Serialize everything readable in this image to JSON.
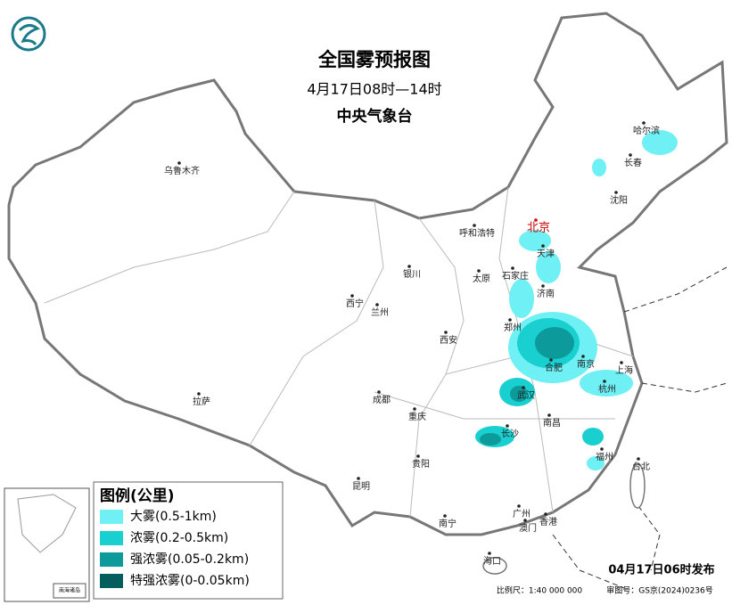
{
  "header": {
    "title": "全国雾预报图",
    "subtitle": "4月17日08时—14时",
    "issuer": "中央气象台"
  },
  "legend": {
    "title": "图例(公里)",
    "items": [
      {
        "label": "大雾(0.5-1km)",
        "color": "#6ff0f4"
      },
      {
        "label": "浓雾(0.2-0.5km)",
        "color": "#19cfcf"
      },
      {
        "label": "强浓雾(0.05-0.2km)",
        "color": "#0d9a9a"
      },
      {
        "label": "特强浓雾(0-0.05km)",
        "color": "#045e5e"
      }
    ]
  },
  "cities": [
    "乌鲁木齐",
    "哈尔滨",
    "长春",
    "沈阳",
    "北京",
    "呼和浩特",
    "天津",
    "石家庄",
    "太原",
    "银川",
    "济南",
    "西宁",
    "兰州",
    "郑州",
    "西安",
    "合肥",
    "南京",
    "上海",
    "杭州",
    "武汉",
    "成都",
    "重庆",
    "拉萨",
    "长沙",
    "南昌",
    "福州",
    "台北",
    "贵阳",
    "昆明",
    "南宁",
    "广州",
    "澳门",
    "香港",
    "海口"
  ],
  "inset": "南海诸岛",
  "footer": {
    "issued": "04月17日06时发布",
    "scale": "比例尺：1:40 000 000",
    "approval": "审图号：GS京(2024)0236号"
  }
}
